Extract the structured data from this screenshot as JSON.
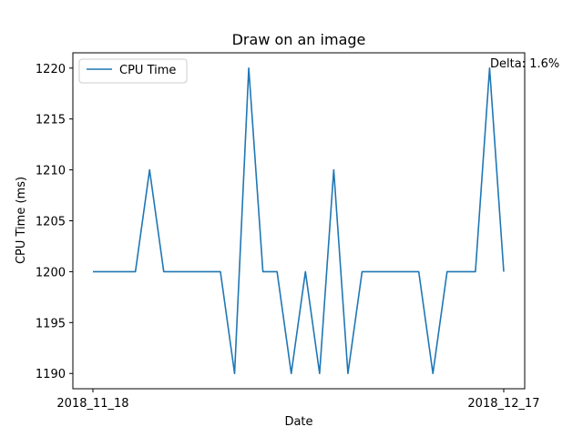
{
  "chart_data": {
    "type": "line",
    "title": "Draw on an image",
    "xlabel": "Date",
    "ylabel": "CPU Time (ms)",
    "x_tick_labels": [
      "2018_11_18",
      "2018_12_17"
    ],
    "ylim": [
      1188.5,
      1221.5
    ],
    "y_ticks": [
      1190,
      1195,
      1200,
      1205,
      1210,
      1215,
      1220
    ],
    "grid": false,
    "legend_position": "top-left",
    "series": [
      {
        "name": "CPU Time",
        "color": "#1f77b4",
        "values": [
          1200,
          1200,
          1200,
          1200,
          1210,
          1200,
          1200,
          1200,
          1200,
          1200,
          1190,
          1220,
          1200,
          1200,
          1190,
          1200,
          1190,
          1210,
          1190,
          1200,
          1200,
          1200,
          1200,
          1200,
          1190,
          1200,
          1200,
          1200,
          1220,
          1200
        ]
      }
    ],
    "annotation": "Delta: 1.6%"
  }
}
